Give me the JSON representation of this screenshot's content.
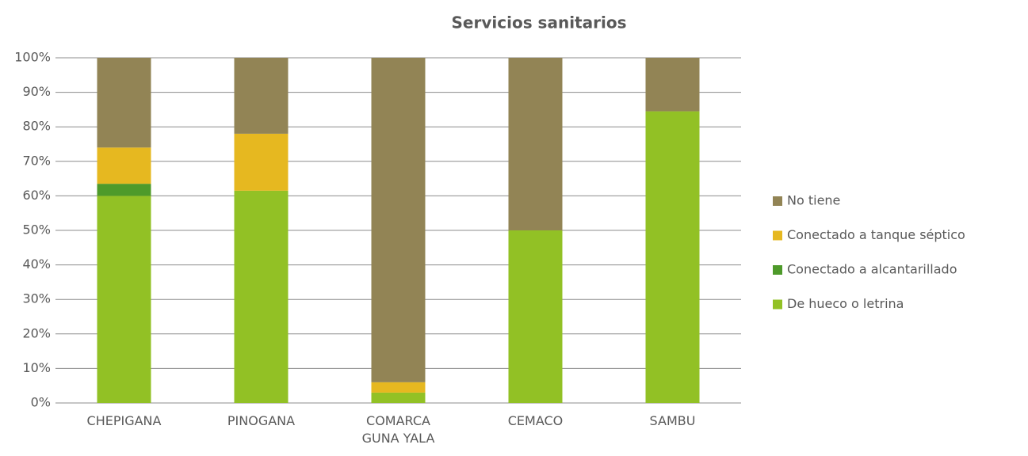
{
  "chart_data": {
    "type": "stacked_bar",
    "title": "Servicios sanitarios",
    "categories": [
      "CHEPIGANA",
      "PINOGANA",
      "COMARCA GUNA YALA",
      "CEMACO",
      "SAMBU"
    ],
    "series": [
      {
        "name": "De hueco o letrina",
        "color": "#92c125",
        "values": [
          60,
          61.5,
          3,
          50,
          84.5
        ]
      },
      {
        "name": "Conectado a alcantarillado",
        "color": "#4e9a2a",
        "values": [
          3.5,
          0,
          0,
          0,
          0
        ]
      },
      {
        "name": "Conectado a tanque séptico",
        "color": "#e6b820",
        "values": [
          10.5,
          16.5,
          3,
          0,
          0
        ]
      },
      {
        "name": "No tiene",
        "color": "#928455",
        "values": [
          26,
          22,
          94,
          50,
          15.5
        ]
      }
    ],
    "ylim": [
      0,
      100
    ],
    "yticks": [
      {
        "value": 0,
        "label": "0%"
      },
      {
        "value": 10,
        "label": "10%"
      },
      {
        "value": 20,
        "label": "20%"
      },
      {
        "value": 30,
        "label": "30%"
      },
      {
        "value": 40,
        "label": "40%"
      },
      {
        "value": 50,
        "label": "50%"
      },
      {
        "value": 60,
        "label": "60%"
      },
      {
        "value": 70,
        "label": "70%"
      },
      {
        "value": 80,
        "label": "80%"
      },
      {
        "value": 90,
        "label": "90%"
      },
      {
        "value": 100,
        "label": "100%"
      }
    ],
    "grid": true,
    "legend": "right"
  }
}
